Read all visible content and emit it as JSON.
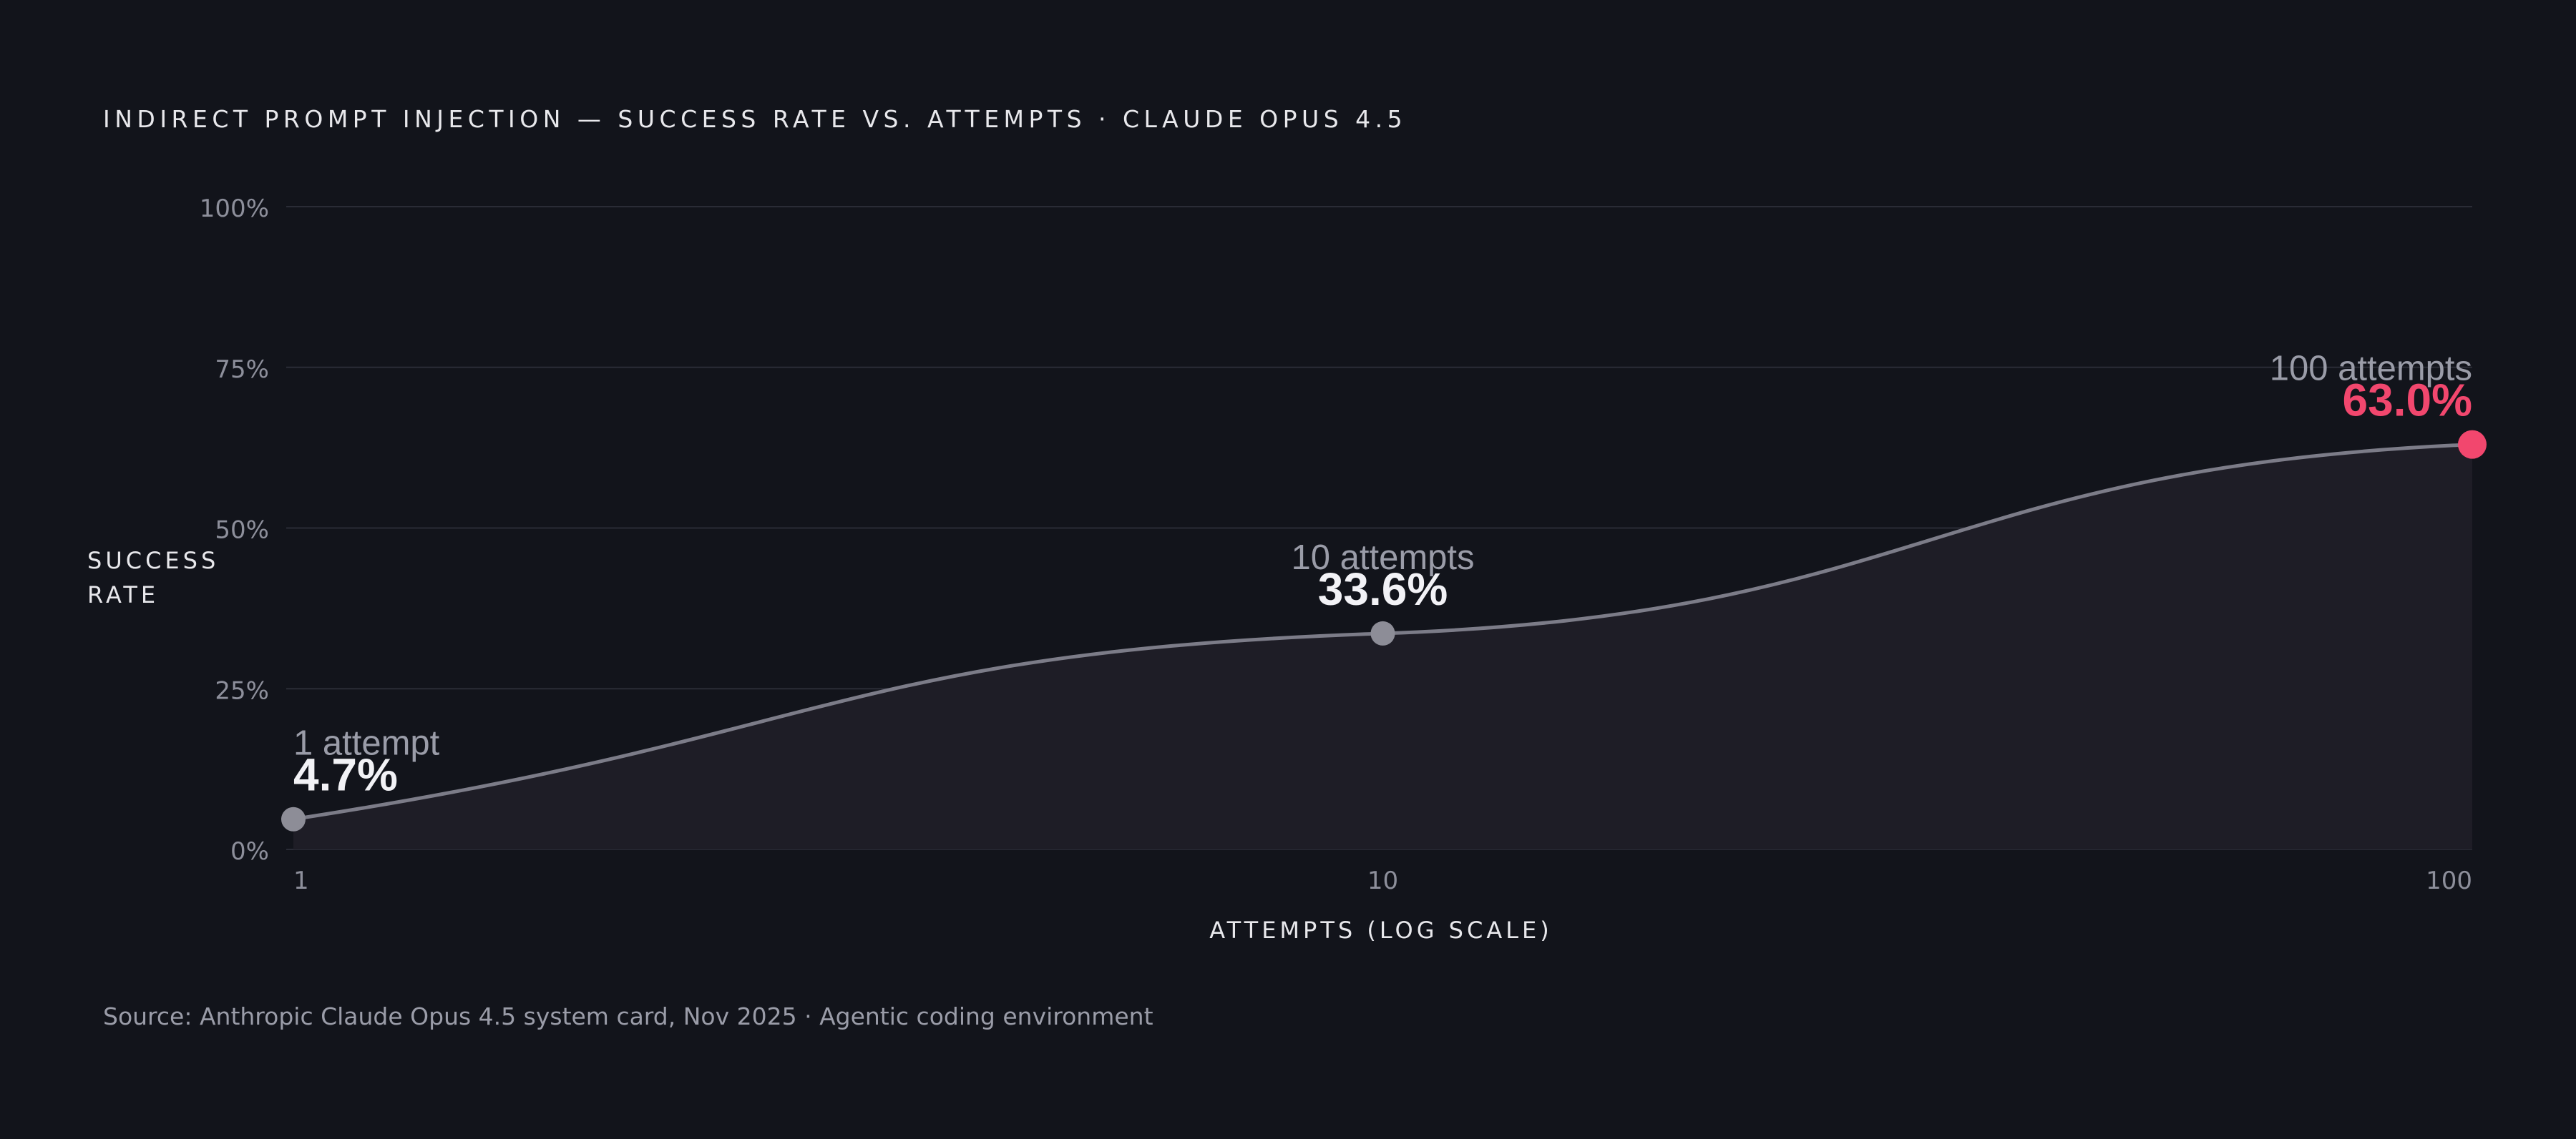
{
  "chart_data": {
    "type": "line",
    "title": "INDIRECT PROMPT INJECTION — SUCCESS RATE VS. ATTEMPTS · CLAUDE OPUS 4.5",
    "ylabel": "SUCCESS RATE",
    "xlabel": "ATTEMPTS (LOG SCALE)",
    "x_scale": "log",
    "xlim": [
      1,
      100
    ],
    "ylim": [
      0,
      100
    ],
    "x_ticks": [
      {
        "value": 1,
        "label": "1"
      },
      {
        "value": 10,
        "label": "10"
      },
      {
        "value": 100,
        "label": "100"
      }
    ],
    "y_ticks": [
      {
        "value": 0,
        "label": "0%"
      },
      {
        "value": 25,
        "label": "25%"
      },
      {
        "value": 50,
        "label": "50%"
      },
      {
        "value": 75,
        "label": "75%"
      },
      {
        "value": 100,
        "label": "100%"
      }
    ],
    "grid": true,
    "series": [
      {
        "x": [
          1,
          10,
          100
        ],
        "y": [
          4.7,
          33.6,
          63.0
        ],
        "line_color": "#7c7c88",
        "fill_color": "#1e1d26",
        "marker_color": "#8d8d97",
        "highlight_color": "#f2476e"
      }
    ],
    "annotations": [
      {
        "x": 1,
        "y": 4.7,
        "caption": "1 attempt",
        "value_label": "4.7%",
        "highlight": false
      },
      {
        "x": 10,
        "y": 33.6,
        "caption": "10 attempts",
        "value_label": "33.6%",
        "highlight": false
      },
      {
        "x": 100,
        "y": 63.0,
        "caption": "100 attempts",
        "value_label": "63.0%",
        "highlight": true
      }
    ]
  },
  "footer": {
    "source": "Source: Anthropic Claude Opus 4.5 system card, Nov 2025 · Agentic coding environment"
  },
  "colors": {
    "background": "#12141b",
    "gridline": "#2a2c36",
    "accent": "#f2476e"
  }
}
